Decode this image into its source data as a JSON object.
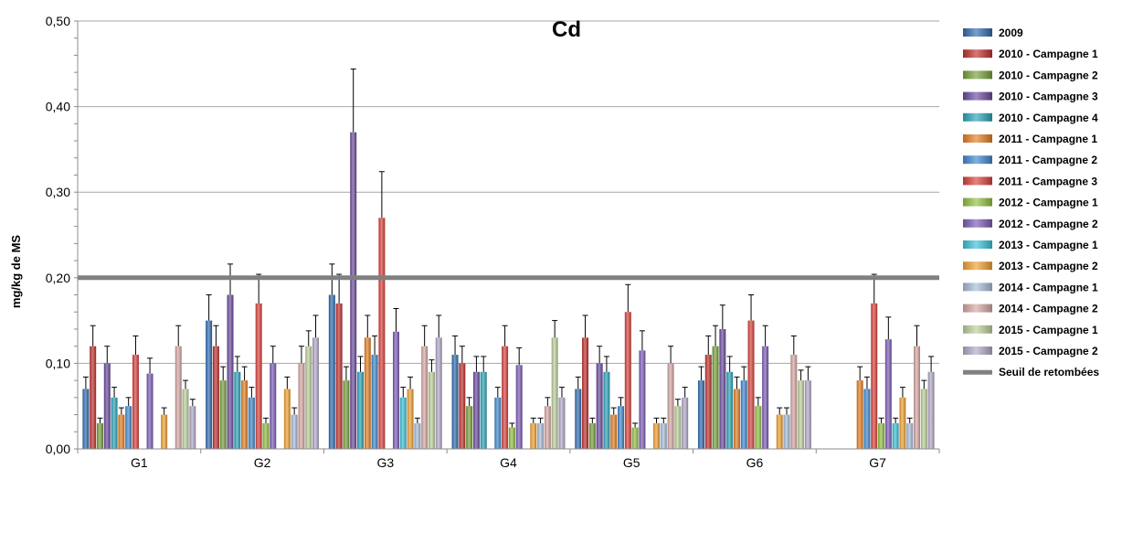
{
  "chart_data": {
    "type": "bar",
    "title": "Cd",
    "xlabel": "",
    "ylabel": "mg/kg de MS",
    "ylim": [
      0,
      0.5
    ],
    "yticks": [
      0,
      0.1,
      0.2,
      0.3,
      0.4,
      0.5
    ],
    "ytick_labels": [
      "0,00",
      "0,10",
      "0,20",
      "0,30",
      "0,40",
      "0,50"
    ],
    "grid": true,
    "legend_position": "right",
    "categories": [
      "G1",
      "G2",
      "G3",
      "G4",
      "G5",
      "G6",
      "G7"
    ],
    "series": [
      {
        "name": "2009",
        "color": "#2e6bb0",
        "values": [
          0.07,
          0.15,
          0.18,
          0.11,
          0.07,
          0.08,
          null
        ],
        "errors": [
          0.014,
          0.03,
          0.036,
          0.022,
          0.014,
          0.016,
          null
        ]
      },
      {
        "name": "2010 - Campagne 1",
        "color": "#c0302c",
        "values": [
          0.12,
          0.12,
          0.17,
          0.1,
          0.13,
          0.11,
          null
        ],
        "errors": [
          0.024,
          0.024,
          0.034,
          0.02,
          0.026,
          0.022,
          null
        ]
      },
      {
        "name": "2010 - Campagne 2",
        "color": "#76a03a",
        "values": [
          0.03,
          0.08,
          0.08,
          0.05,
          0.03,
          0.12,
          null
        ],
        "errors": [
          0.006,
          0.016,
          0.016,
          0.01,
          0.006,
          0.024,
          null
        ]
      },
      {
        "name": "2010 - Campagne 3",
        "color": "#6a4a9c",
        "values": [
          0.1,
          0.18,
          0.37,
          0.09,
          0.1,
          0.14,
          null
        ],
        "errors": [
          0.02,
          0.036,
          0.074,
          0.018,
          0.02,
          0.028,
          null
        ]
      },
      {
        "name": "2010 - Campagne 4",
        "color": "#2aa3b8",
        "values": [
          0.06,
          0.09,
          0.09,
          0.09,
          0.09,
          0.09,
          null
        ],
        "errors": [
          0.012,
          0.018,
          0.018,
          0.018,
          0.018,
          0.018,
          null
        ]
      },
      {
        "name": "2011 - Campagne 1",
        "color": "#e47d22",
        "values": [
          0.04,
          0.08,
          0.13,
          null,
          0.04,
          0.07,
          0.08
        ],
        "errors": [
          0.008,
          0.016,
          0.026,
          null,
          0.008,
          0.014,
          0.016
        ]
      },
      {
        "name": "2011 - Campagne 2",
        "color": "#3d87cc",
        "values": [
          0.05,
          0.06,
          0.11,
          0.06,
          0.05,
          0.08,
          0.07
        ],
        "errors": [
          0.01,
          0.012,
          0.022,
          0.012,
          0.01,
          0.016,
          0.014
        ]
      },
      {
        "name": "2011 - Campagne 3",
        "color": "#d9403a",
        "values": [
          0.11,
          0.17,
          0.27,
          0.12,
          0.16,
          0.15,
          0.17
        ],
        "errors": [
          0.022,
          0.034,
          0.054,
          0.024,
          0.032,
          0.03,
          0.034
        ]
      },
      {
        "name": "2012 - Campagne 1",
        "color": "#90c040",
        "values": [
          null,
          0.03,
          null,
          0.025,
          0.025,
          0.05,
          0.03
        ],
        "errors": [
          null,
          0.006,
          null,
          0.005,
          0.005,
          0.01,
          0.006
        ]
      },
      {
        "name": "2012 - Campagne 2",
        "color": "#7b5bb5",
        "values": [
          0.088,
          0.1,
          0.137,
          0.098,
          0.115,
          0.12,
          0.128
        ],
        "errors": [
          0.018,
          0.02,
          0.027,
          0.02,
          0.023,
          0.024,
          0.026
        ]
      },
      {
        "name": "2013 - Campagne 1",
        "color": "#38c0d8",
        "values": [
          null,
          null,
          0.06,
          null,
          null,
          null,
          0.03
        ],
        "errors": [
          null,
          null,
          0.012,
          null,
          null,
          null,
          0.006
        ]
      },
      {
        "name": "2013 - Campagne 2",
        "color": "#f0a030",
        "values": [
          0.04,
          0.07,
          0.07,
          0.03,
          0.03,
          0.04,
          0.06
        ],
        "errors": [
          0.008,
          0.014,
          0.014,
          0.006,
          0.006,
          0.008,
          0.012
        ]
      },
      {
        "name": "2014 - Campagne 1",
        "color": "#a6bcd8",
        "values": [
          null,
          0.04,
          0.03,
          0.03,
          0.03,
          0.04,
          0.03
        ],
        "errors": [
          null,
          0.008,
          0.006,
          0.006,
          0.006,
          0.008,
          0.006
        ]
      },
      {
        "name": "2014 - Campagne 2",
        "color": "#d6a6a2",
        "values": [
          0.12,
          0.1,
          0.12,
          0.05,
          0.1,
          0.11,
          0.12
        ],
        "errors": [
          0.024,
          0.02,
          0.024,
          0.01,
          0.02,
          0.022,
          0.024
        ]
      },
      {
        "name": "2015 - Campagne 1",
        "color": "#bccf9a",
        "values": [
          0.07,
          0.12,
          0.09,
          0.13,
          0.05,
          0.08,
          0.07
        ],
        "errors": [
          0.01,
          0.018,
          0.014,
          0.02,
          0.008,
          0.012,
          0.01
        ]
      },
      {
        "name": "2015 - Campagne 2",
        "color": "#b2a8c8",
        "values": [
          0.05,
          0.13,
          0.13,
          0.06,
          0.06,
          0.08,
          0.09
        ],
        "errors": [
          0.008,
          0.026,
          0.026,
          0.012,
          0.012,
          0.016,
          0.018
        ]
      }
    ],
    "threshold": {
      "name": "Seuil de retombées",
      "value": 0.2,
      "color": "#808080"
    }
  }
}
